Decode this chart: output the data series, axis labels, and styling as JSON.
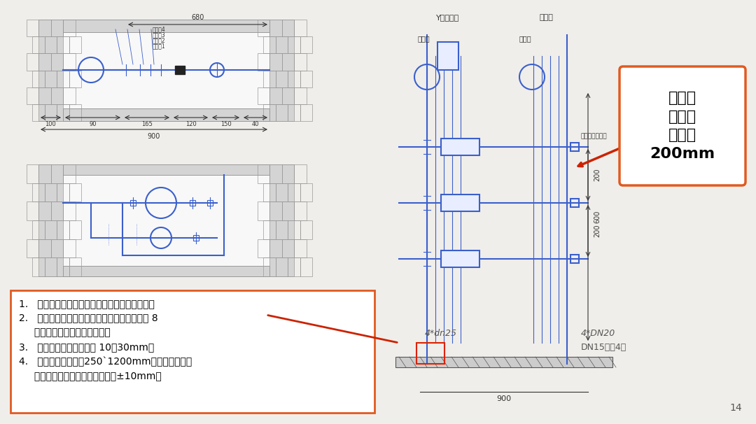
{
  "bg_color": "#f0eeea",
  "title": "",
  "page_num": "14",
  "callout_text": "水表之\n间安装\n间距为\n200mm",
  "callout_border": "#e05a20",
  "callout_text_color": "#000000",
  "note_border": "#e05a20",
  "note_bg": "#ffffff",
  "note_lines": [
    "1.   水表须水平安装，箭头方向与水流方向一致。",
    "2.   安装螺翼湿式水表，表前与阀门应有不小于 8\n     倍水表接口直径的直线管段。",
    "3.   表外壳距墙表面净距为 10～30mm。",
    "4.   水表安装高度宜为250`1200mm；水表进水口中\n     心标高按设计要求，允许偏差为±10mm。"
  ],
  "draw_color": "#3a5fcd",
  "dim_color": "#000000",
  "arrow_color": "#cc2200"
}
